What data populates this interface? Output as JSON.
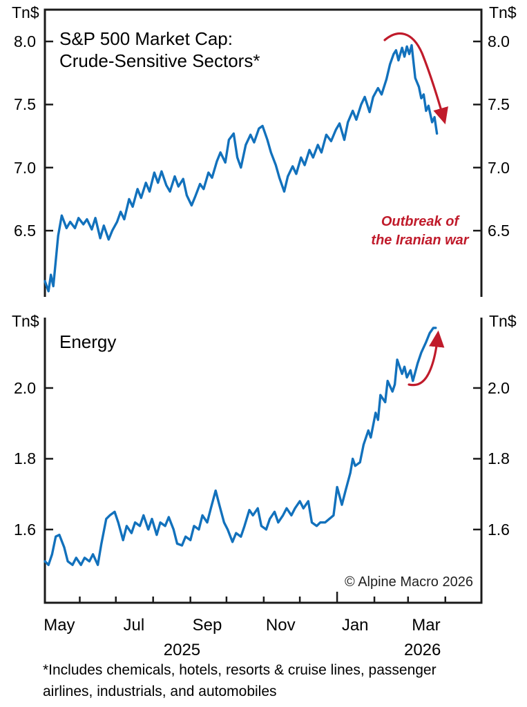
{
  "figure": {
    "unit_label": "Tn$",
    "source_note": "© Alpine Macro 2026",
    "footnote_lines": [
      "*Includes chemicals, hotels, resorts & cruise lines, passenger",
      "airlines, industrials, and automobiles"
    ],
    "x_axis": {
      "domain": [
        "2025-05-03",
        "2026-05-01"
      ],
      "month_tick_dates": [
        "2025-06-01",
        "2025-07-01",
        "2025-08-01",
        "2025-09-01",
        "2025-10-01",
        "2025-11-01",
        "2025-12-01",
        "2026-01-01",
        "2026-02-01",
        "2026-03-01",
        "2026-04-01"
      ],
      "major_tick_date": "2026-01-01",
      "month_labels": [
        {
          "label": "May",
          "date": "2025-05-15"
        },
        {
          "label": "Jul",
          "date": "2025-07-16"
        },
        {
          "label": "Sep",
          "date": "2025-09-15"
        },
        {
          "label": "Nov",
          "date": "2025-11-15"
        },
        {
          "label": "Jan",
          "date": "2026-01-16"
        },
        {
          "label": "Mar",
          "date": "2026-03-16"
        }
      ],
      "year_labels": [
        {
          "label": "2025",
          "date": "2025-08-25"
        },
        {
          "label": "2026",
          "date": "2026-03-13"
        }
      ]
    }
  },
  "colors": {
    "series_line": "#1271BC",
    "annotation_red": "#C01B2B",
    "axis": "#1A1A1A"
  },
  "chart_data": [
    {
      "type": "line",
      "panel": "top",
      "title": "S&P 500 Market Cap: Crude-Sensitive Sectors*",
      "title_lines": [
        "S&P 500 Market Cap:",
        "Crude-Sensitive Sectors*"
      ],
      "ylabel": "Tn$",
      "ylim": [
        5.975,
        8.252
      ],
      "yticks": [
        6.5,
        7.0,
        7.5,
        8.0
      ],
      "grid": false,
      "annotation": {
        "lines": [
          "Outbreak of",
          "the Iranian war"
        ],
        "arrow": "red arc over the February peak pointing down to the post-war drop"
      },
      "series": [
        {
          "name": "S&P 500 market cap — crude-sensitive sectors (Tn$)",
          "points": [
            [
              "2025-05-03",
              6.1
            ],
            [
              "2025-05-06",
              6.02
            ],
            [
              "2025-05-08",
              6.15
            ],
            [
              "2025-05-10",
              6.06
            ],
            [
              "2025-05-14",
              6.46
            ],
            [
              "2025-05-17",
              6.62
            ],
            [
              "2025-05-21",
              6.52
            ],
            [
              "2025-05-24",
              6.57
            ],
            [
              "2025-05-28",
              6.52
            ],
            [
              "2025-05-31",
              6.6
            ],
            [
              "2025-06-04",
              6.55
            ],
            [
              "2025-06-07",
              6.59
            ],
            [
              "2025-06-11",
              6.51
            ],
            [
              "2025-06-14",
              6.6
            ],
            [
              "2025-06-18",
              6.44
            ],
            [
              "2025-06-21",
              6.54
            ],
            [
              "2025-06-25",
              6.43
            ],
            [
              "2025-06-28",
              6.5
            ],
            [
              "2025-07-02",
              6.57
            ],
            [
              "2025-07-05",
              6.65
            ],
            [
              "2025-07-08",
              6.59
            ],
            [
              "2025-07-12",
              6.75
            ],
            [
              "2025-07-15",
              6.69
            ],
            [
              "2025-07-19",
              6.83
            ],
            [
              "2025-07-22",
              6.76
            ],
            [
              "2025-07-26",
              6.88
            ],
            [
              "2025-07-29",
              6.81
            ],
            [
              "2025-08-02",
              6.96
            ],
            [
              "2025-08-05",
              6.88
            ],
            [
              "2025-08-08",
              6.97
            ],
            [
              "2025-08-12",
              6.86
            ],
            [
              "2025-08-15",
              6.81
            ],
            [
              "2025-08-19",
              6.93
            ],
            [
              "2025-08-22",
              6.85
            ],
            [
              "2025-08-26",
              6.91
            ],
            [
              "2025-08-29",
              6.78
            ],
            [
              "2025-09-02",
              6.7
            ],
            [
              "2025-09-05",
              6.77
            ],
            [
              "2025-09-09",
              6.87
            ],
            [
              "2025-09-12",
              6.83
            ],
            [
              "2025-09-16",
              6.96
            ],
            [
              "2025-09-19",
              6.92
            ],
            [
              "2025-09-23",
              7.05
            ],
            [
              "2025-09-26",
              7.12
            ],
            [
              "2025-09-30",
              7.04
            ],
            [
              "2025-10-03",
              7.22
            ],
            [
              "2025-10-07",
              7.27
            ],
            [
              "2025-10-10",
              7.08
            ],
            [
              "2025-10-13",
              7.0
            ],
            [
              "2025-10-17",
              7.18
            ],
            [
              "2025-10-21",
              7.26
            ],
            [
              "2025-10-24",
              7.2
            ],
            [
              "2025-10-28",
              7.31
            ],
            [
              "2025-10-31",
              7.33
            ],
            [
              "2025-11-04",
              7.22
            ],
            [
              "2025-11-07",
              7.12
            ],
            [
              "2025-11-11",
              7.02
            ],
            [
              "2025-11-14",
              6.92
            ],
            [
              "2025-11-18",
              6.81
            ],
            [
              "2025-11-21",
              6.93
            ],
            [
              "2025-11-25",
              7.01
            ],
            [
              "2025-11-28",
              6.95
            ],
            [
              "2025-12-02",
              7.08
            ],
            [
              "2025-12-05",
              7.02
            ],
            [
              "2025-12-09",
              7.14
            ],
            [
              "2025-12-12",
              7.08
            ],
            [
              "2025-12-16",
              7.18
            ],
            [
              "2025-12-19",
              7.12
            ],
            [
              "2025-12-23",
              7.26
            ],
            [
              "2025-12-27",
              7.21
            ],
            [
              "2025-12-31",
              7.3
            ],
            [
              "2026-01-03",
              7.35
            ],
            [
              "2026-01-07",
              7.22
            ],
            [
              "2026-01-10",
              7.36
            ],
            [
              "2026-01-14",
              7.45
            ],
            [
              "2026-01-17",
              7.38
            ],
            [
              "2026-01-21",
              7.5
            ],
            [
              "2026-01-24",
              7.56
            ],
            [
              "2026-01-28",
              7.44
            ],
            [
              "2026-01-31",
              7.56
            ],
            [
              "2026-02-04",
              7.63
            ],
            [
              "2026-02-07",
              7.58
            ],
            [
              "2026-02-11",
              7.7
            ],
            [
              "2026-02-14",
              7.82
            ],
            [
              "2026-02-17",
              7.9
            ],
            [
              "2026-02-19",
              7.93
            ],
            [
              "2026-02-21",
              7.85
            ],
            [
              "2026-02-24",
              7.95
            ],
            [
              "2026-02-26",
              7.88
            ],
            [
              "2026-02-28",
              7.96
            ],
            [
              "2026-03-02",
              7.9
            ],
            [
              "2026-03-04",
              7.97
            ],
            [
              "2026-03-07",
              7.71
            ],
            [
              "2026-03-10",
              7.64
            ],
            [
              "2026-03-12",
              7.55
            ],
            [
              "2026-03-14",
              7.58
            ],
            [
              "2026-03-16",
              7.45
            ],
            [
              "2026-03-18",
              7.49
            ],
            [
              "2026-03-21",
              7.36
            ],
            [
              "2026-03-23",
              7.4
            ],
            [
              "2026-03-25",
              7.27
            ]
          ]
        }
      ]
    },
    {
      "type": "line",
      "panel": "bottom",
      "title": "Energy",
      "title_lines": [
        "Energy"
      ],
      "ylabel": "Tn$",
      "ylim": [
        1.393,
        2.199
      ],
      "yticks": [
        1.6,
        1.8,
        2.0
      ],
      "grid": false,
      "annotation": {
        "lines": [],
        "arrow": "red swoosh following the early-2026 surge pointing up"
      },
      "series": [
        {
          "name": "S&P 500 market cap — energy sector (Tn$)",
          "points": [
            [
              "2025-05-03",
              1.51
            ],
            [
              "2025-05-06",
              1.5
            ],
            [
              "2025-05-09",
              1.53
            ],
            [
              "2025-05-12",
              1.58
            ],
            [
              "2025-05-15",
              1.585
            ],
            [
              "2025-05-19",
              1.55
            ],
            [
              "2025-05-22",
              1.51
            ],
            [
              "2025-05-26",
              1.5
            ],
            [
              "2025-05-29",
              1.52
            ],
            [
              "2025-06-02",
              1.5
            ],
            [
              "2025-06-05",
              1.52
            ],
            [
              "2025-06-09",
              1.51
            ],
            [
              "2025-06-12",
              1.53
            ],
            [
              "2025-06-16",
              1.5
            ],
            [
              "2025-06-19",
              1.56
            ],
            [
              "2025-06-23",
              1.63
            ],
            [
              "2025-06-26",
              1.64
            ],
            [
              "2025-06-30",
              1.65
            ],
            [
              "2025-07-03",
              1.62
            ],
            [
              "2025-07-07",
              1.57
            ],
            [
              "2025-07-10",
              1.61
            ],
            [
              "2025-07-14",
              1.59
            ],
            [
              "2025-07-17",
              1.62
            ],
            [
              "2025-07-21",
              1.61
            ],
            [
              "2025-07-24",
              1.64
            ],
            [
              "2025-07-28",
              1.6
            ],
            [
              "2025-07-31",
              1.63
            ],
            [
              "2025-08-04",
              1.585
            ],
            [
              "2025-08-07",
              1.62
            ],
            [
              "2025-08-11",
              1.61
            ],
            [
              "2025-08-14",
              1.635
            ],
            [
              "2025-08-18",
              1.6
            ],
            [
              "2025-08-21",
              1.56
            ],
            [
              "2025-08-25",
              1.555
            ],
            [
              "2025-08-28",
              1.58
            ],
            [
              "2025-09-01",
              1.57
            ],
            [
              "2025-09-04",
              1.61
            ],
            [
              "2025-09-08",
              1.6
            ],
            [
              "2025-09-11",
              1.64
            ],
            [
              "2025-09-15",
              1.62
            ],
            [
              "2025-09-18",
              1.66
            ],
            [
              "2025-09-22",
              1.71
            ],
            [
              "2025-09-25",
              1.67
            ],
            [
              "2025-09-29",
              1.62
            ],
            [
              "2025-10-02",
              1.6
            ],
            [
              "2025-10-06",
              1.565
            ],
            [
              "2025-10-09",
              1.59
            ],
            [
              "2025-10-13",
              1.58
            ],
            [
              "2025-10-16",
              1.61
            ],
            [
              "2025-10-20",
              1.655
            ],
            [
              "2025-10-23",
              1.64
            ],
            [
              "2025-10-27",
              1.66
            ],
            [
              "2025-10-30",
              1.61
            ],
            [
              "2025-11-03",
              1.6
            ],
            [
              "2025-11-06",
              1.63
            ],
            [
              "2025-11-10",
              1.65
            ],
            [
              "2025-11-13",
              1.62
            ],
            [
              "2025-11-17",
              1.64
            ],
            [
              "2025-11-20",
              1.66
            ],
            [
              "2025-11-24",
              1.64
            ],
            [
              "2025-11-27",
              1.66
            ],
            [
              "2025-12-01",
              1.68
            ],
            [
              "2025-12-04",
              1.66
            ],
            [
              "2025-12-08",
              1.68
            ],
            [
              "2025-12-11",
              1.62
            ],
            [
              "2025-12-15",
              1.61
            ],
            [
              "2025-12-18",
              1.62
            ],
            [
              "2025-12-22",
              1.62
            ],
            [
              "2025-12-29",
              1.64
            ],
            [
              "2026-01-01",
              1.72
            ],
            [
              "2026-01-05",
              1.67
            ],
            [
              "2026-01-08",
              1.71
            ],
            [
              "2026-01-12",
              1.76
            ],
            [
              "2026-01-14",
              1.8
            ],
            [
              "2026-01-16",
              1.78
            ],
            [
              "2026-01-20",
              1.79
            ],
            [
              "2026-01-23",
              1.84
            ],
            [
              "2026-01-27",
              1.88
            ],
            [
              "2026-01-29",
              1.86
            ],
            [
              "2026-02-02",
              1.93
            ],
            [
              "2026-02-04",
              1.91
            ],
            [
              "2026-02-06",
              1.98
            ],
            [
              "2026-02-10",
              1.96
            ],
            [
              "2026-02-12",
              2.02
            ],
            [
              "2026-02-16",
              1.99
            ],
            [
              "2026-02-18",
              2.01
            ],
            [
              "2026-02-20",
              2.08
            ],
            [
              "2026-02-24",
              2.04
            ],
            [
              "2026-02-26",
              2.06
            ],
            [
              "2026-02-28",
              2.03
            ],
            [
              "2026-03-03",
              2.05
            ],
            [
              "2026-03-05",
              2.02
            ],
            [
              "2026-03-09",
              2.07
            ],
            [
              "2026-03-12",
              2.1
            ],
            [
              "2026-03-16",
              2.13
            ],
            [
              "2026-03-19",
              2.155
            ],
            [
              "2026-03-22",
              2.17
            ],
            [
              "2026-03-24",
              2.17
            ]
          ]
        }
      ]
    }
  ]
}
